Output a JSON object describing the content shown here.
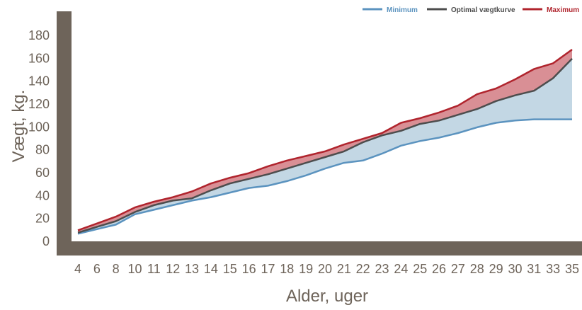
{
  "chart_data": {
    "type": "area",
    "xlabel": "Alder, uger",
    "ylabel": "Vægt, kg.",
    "categories": [
      "4",
      "6",
      "8",
      "10",
      "11",
      "12",
      "13",
      "14",
      "15",
      "16",
      "17",
      "18",
      "19",
      "20",
      "21",
      "22",
      "23",
      "24",
      "25",
      "26",
      "27",
      "28",
      "29",
      "30",
      "31",
      "33",
      "35"
    ],
    "ylim": [
      0,
      180
    ],
    "yticks": [
      0,
      20,
      40,
      60,
      80,
      100,
      120,
      140,
      160,
      180
    ],
    "grid": false,
    "legend_position": "top-right",
    "series": [
      {
        "name": "Minimum",
        "color": "#5b93bf",
        "values": [
          6,
          10,
          14,
          23,
          27,
          31,
          35,
          38,
          42,
          46,
          48,
          52,
          57,
          63,
          68,
          70,
          76,
          83,
          87,
          90,
          94,
          99,
          103,
          105,
          106,
          106,
          106
        ]
      },
      {
        "name": "Optimal vægtkurve",
        "color": "#4d4d4d",
        "values": [
          7,
          12,
          17,
          25,
          31,
          35,
          37,
          44,
          50,
          54,
          58,
          63,
          68,
          73,
          78,
          86,
          92,
          96,
          102,
          105,
          110,
          115,
          122,
          127,
          131,
          142,
          159
        ]
      },
      {
        "name": "Maximum",
        "color": "#b0242d",
        "values": [
          9,
          15,
          21,
          29,
          34,
          38,
          43,
          50,
          55,
          59,
          65,
          70,
          74,
          78,
          84,
          89,
          94,
          103,
          107,
          112,
          118,
          128,
          133,
          141,
          150,
          155,
          167
        ]
      }
    ],
    "fills": {
      "upper_band": "#d98f95",
      "lower_band": "#c3d7e4"
    },
    "frame_color": "#6e645a"
  }
}
